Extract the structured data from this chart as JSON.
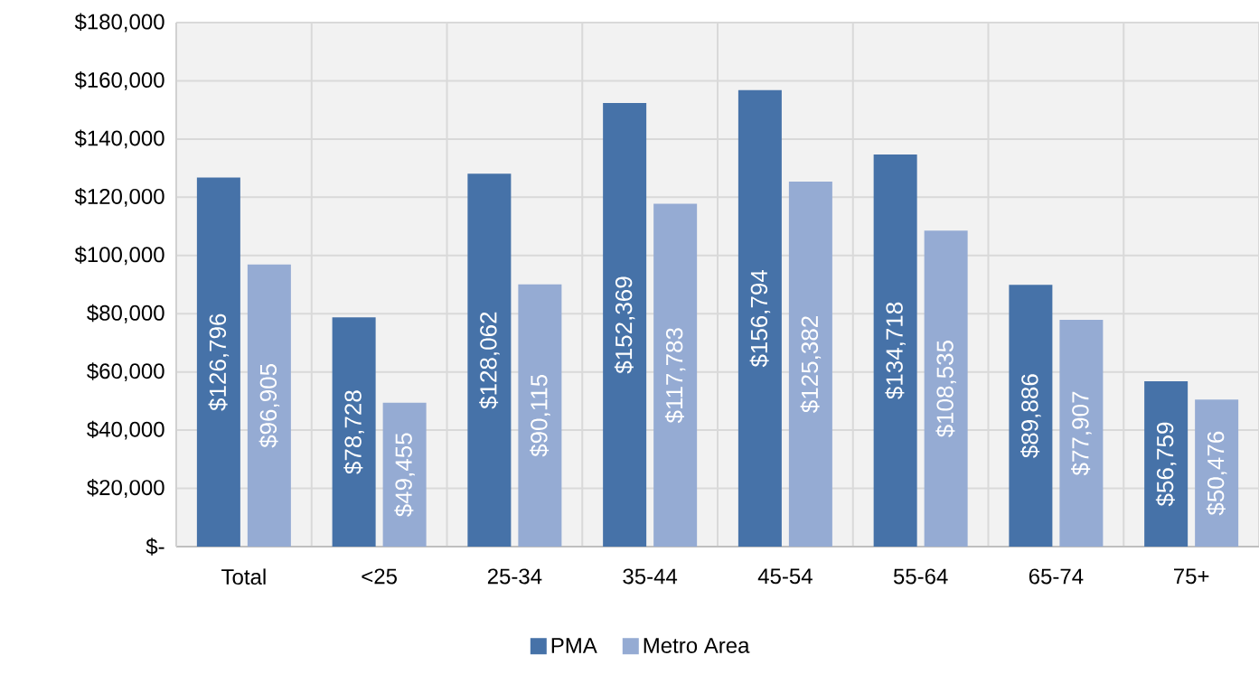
{
  "chart_data": {
    "type": "bar",
    "categories": [
      "Total",
      "<25",
      "25-34",
      "35-44",
      "45-54",
      "55-64",
      "65-74",
      "75+"
    ],
    "series": [
      {
        "name": "PMA",
        "color": "#4672a8",
        "values": [
          126796,
          78728,
          128062,
          152369,
          156794,
          134718,
          89886,
          56759
        ],
        "value_labels": [
          "$126,796",
          "$78,728",
          "$128,062",
          "$152,369",
          "$156,794",
          "$134,718",
          "$89,886",
          "$56,759"
        ]
      },
      {
        "name": "Metro Area",
        "color": "#95abd3",
        "values": [
          96905,
          49455,
          90115,
          117783,
          125382,
          108535,
          77907,
          50476
        ],
        "value_labels": [
          "$96,905",
          "$49,455",
          "$90,115",
          "$117,783",
          "$125,382",
          "$108,535",
          "$77,907",
          "$50,476"
        ]
      }
    ],
    "ylim": [
      0,
      180000
    ],
    "yticks": [
      {
        "value": 0,
        "label": "$-"
      },
      {
        "value": 20000,
        "label": "$20,000"
      },
      {
        "value": 40000,
        "label": "$40,000"
      },
      {
        "value": 60000,
        "label": "$60,000"
      },
      {
        "value": 80000,
        "label": "$80,000"
      },
      {
        "value": 100000,
        "label": "$100,000"
      },
      {
        "value": 120000,
        "label": "$120,000"
      },
      {
        "value": 140000,
        "label": "$140,000"
      },
      {
        "value": 160000,
        "label": "$160,000"
      },
      {
        "value": 180000,
        "label": "$180,000"
      }
    ],
    "grid": true,
    "legend": "bottom"
  }
}
